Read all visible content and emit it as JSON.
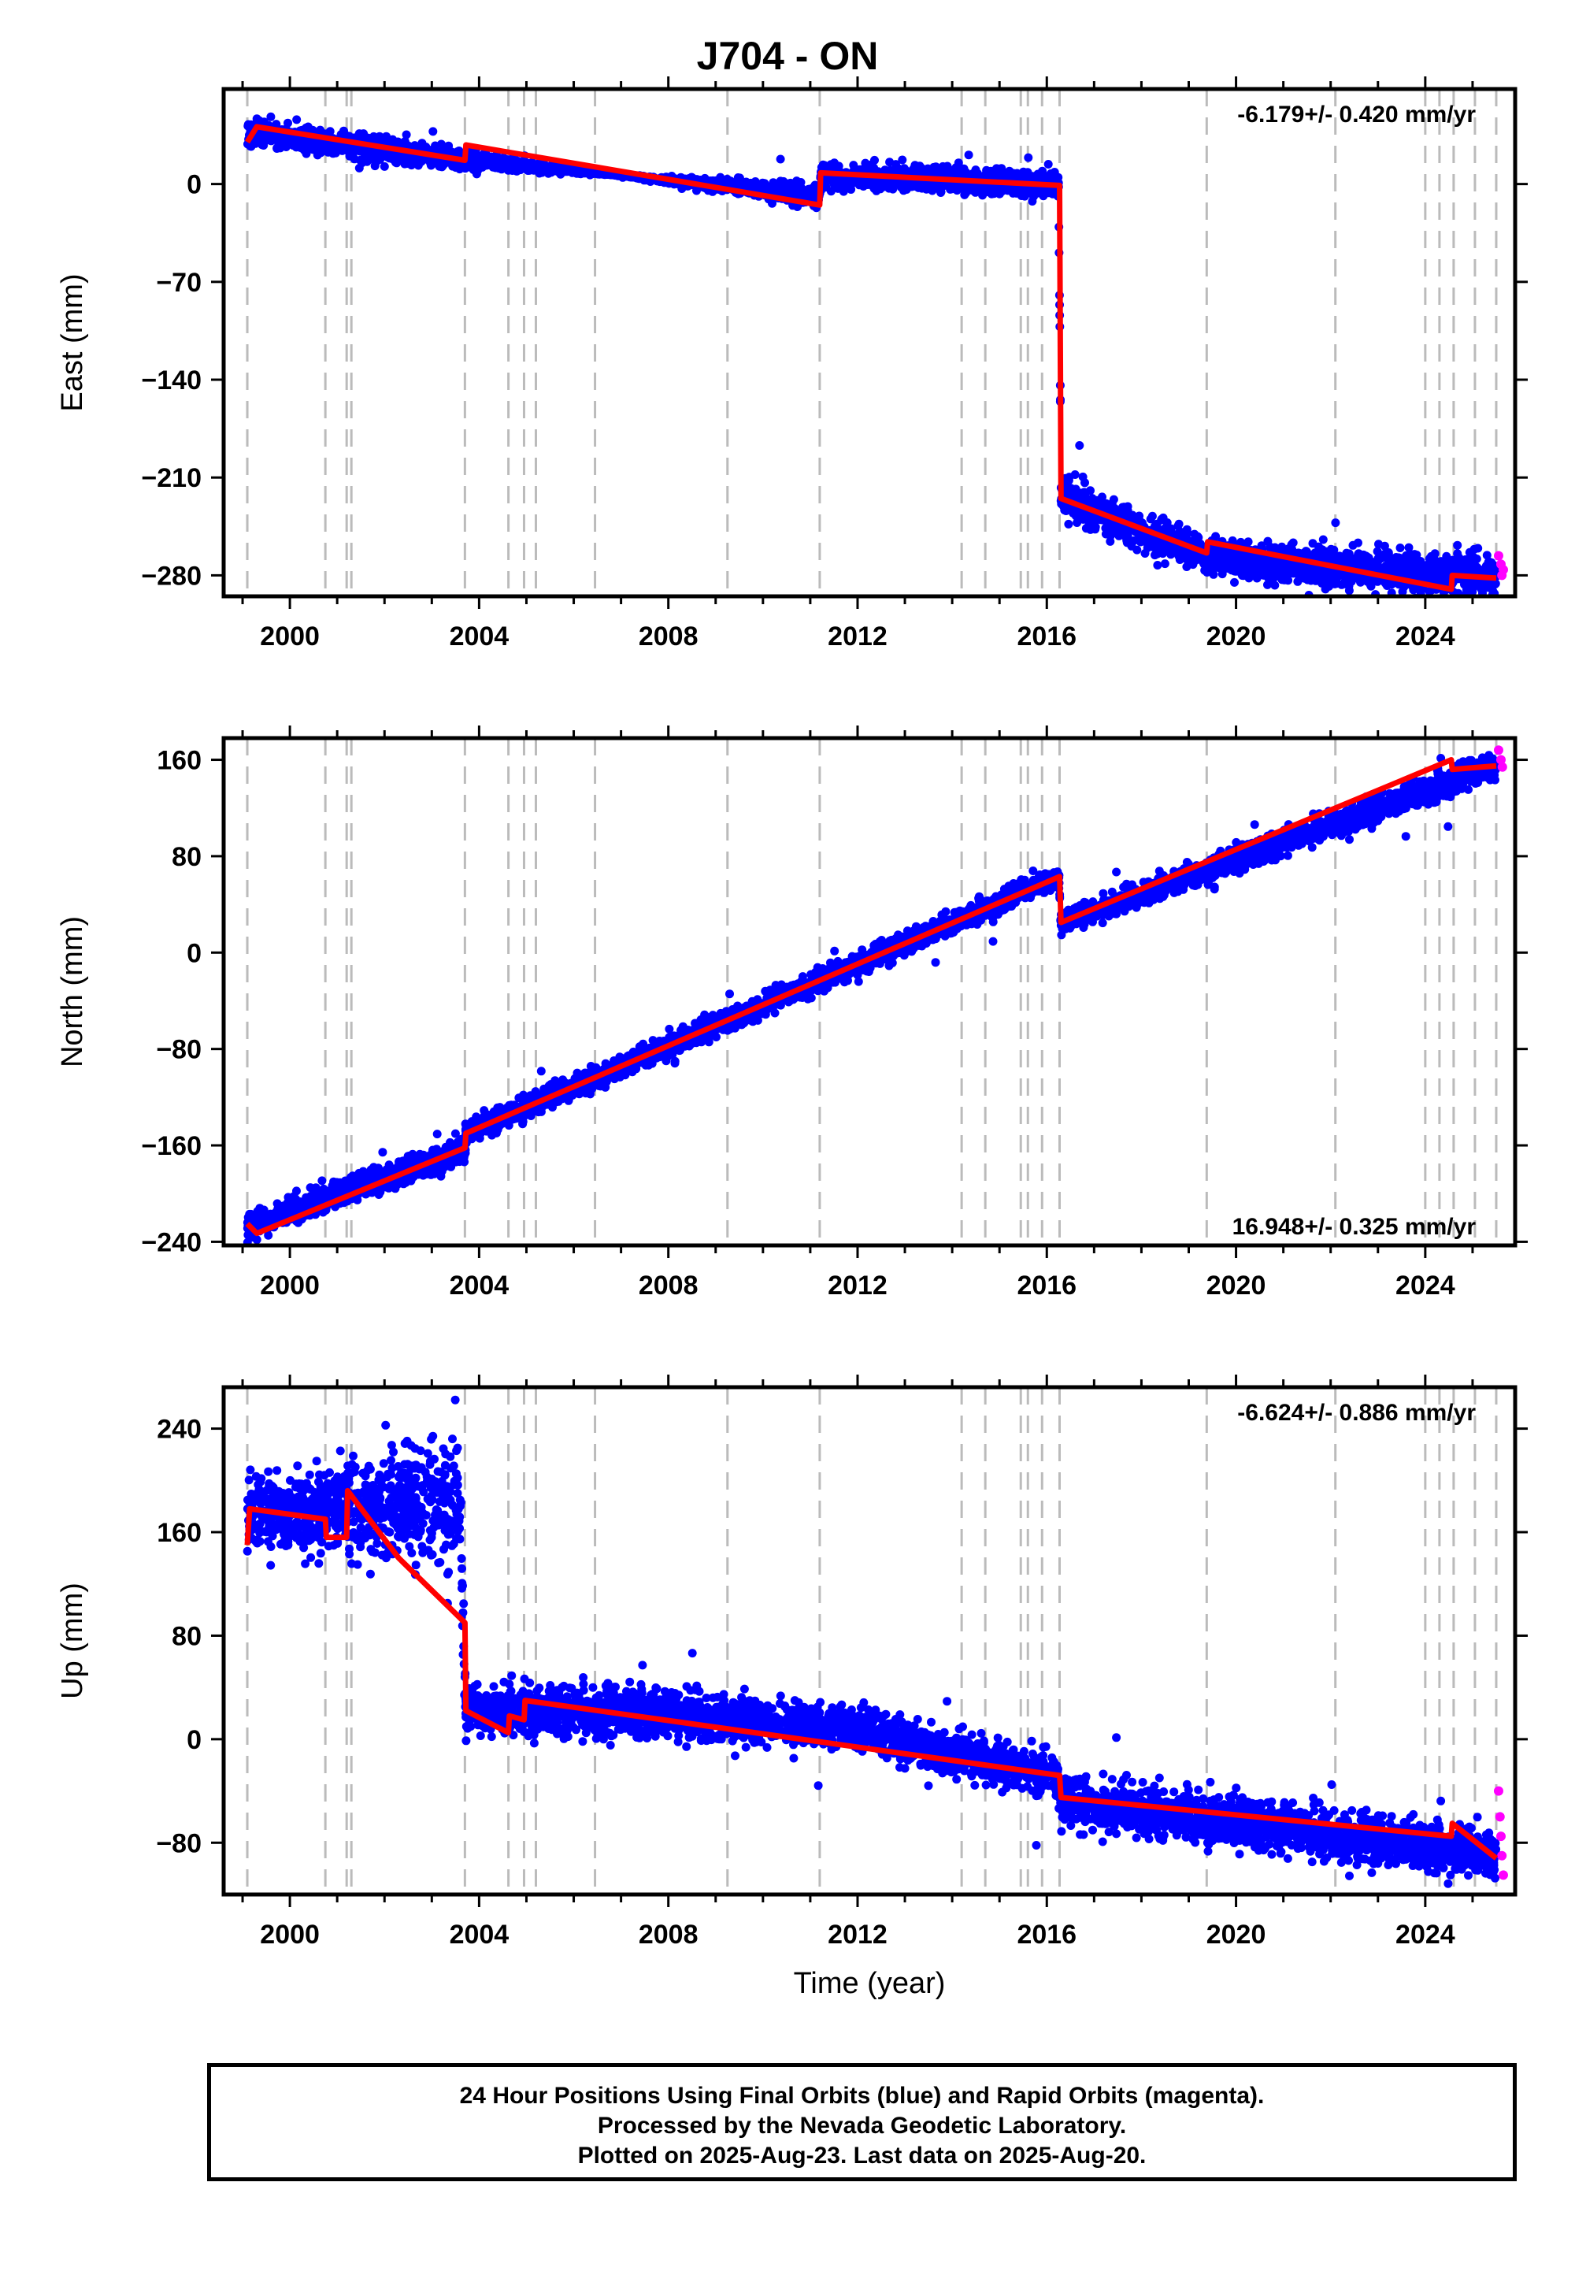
{
  "title": "J704 - ON",
  "footer": {
    "line1": "24 Hour Positions Using Final Orbits (blue) and Rapid Orbits (magenta).",
    "line2": "Processed by the Nevada Geodetic Laboratory.",
    "line3": "Plotted on 2025-Aug-23. Last data on 2025-Aug-20."
  },
  "colors": {
    "final": "#0000ff",
    "rapid": "#ff00ff",
    "model": "#ff0000",
    "event_lines": "#bbbbbb"
  },
  "chart_data": [
    {
      "type": "scatter",
      "component": "east",
      "ylabel": "East (mm)",
      "xlabel": "",
      "rate_text": "-6.179+/- 0.420 mm/yr",
      "rate_position": "top-right",
      "xlim": [
        1998.6,
        2025.9
      ],
      "ylim": [
        -295,
        68
      ],
      "x_ticks": [
        2000,
        2004,
        2008,
        2012,
        2016,
        2020,
        2024
      ],
      "y_ticks": [
        0,
        -70,
        -140,
        -210,
        -280
      ],
      "event_lines": [
        1999.1,
        2000.75,
        2001.2,
        2001.3,
        2003.7,
        2004.62,
        2004.95,
        2005.2,
        2006.45,
        2009.25,
        2011.2,
        2014.2,
        2014.7,
        2015.45,
        2015.6,
        2015.9,
        2016.27,
        2019.38,
        2022.1,
        2024.0,
        2024.3,
        2024.6,
        2025.05,
        2025.5
      ],
      "model": [
        [
          1999.1,
          30
        ],
        [
          1999.3,
          41
        ],
        [
          2003.7,
          17
        ],
        [
          2003.72,
          28
        ],
        [
          2011.2,
          -15
        ],
        [
          2011.22,
          8
        ],
        [
          2016.27,
          -1
        ],
        [
          2016.3,
          -225
        ],
        [
          2019.38,
          -264
        ],
        [
          2019.4,
          -256
        ],
        [
          2024.55,
          -290
        ],
        [
          2024.57,
          -280
        ],
        [
          2025.5,
          -282
        ]
      ],
      "scatter_bands": [
        [
          1999.1,
          48,
          26
        ],
        [
          2003.7,
          24,
          10
        ],
        [
          2011.2,
          -18,
          2
        ],
        [
          2011.22,
          16,
          -4
        ],
        [
          2016.25,
          10,
          -10
        ],
        [
          2016.3,
          -205,
          -240
        ],
        [
          2019.38,
          -255,
          -280
        ],
        [
          2025.5,
          -263,
          -300
        ]
      ],
      "rapid_points": [
        [
          2025.55,
          -266
        ],
        [
          2025.6,
          -272
        ],
        [
          2025.65,
          -276
        ],
        [
          2025.62,
          -280
        ]
      ]
    },
    {
      "type": "scatter",
      "component": "north",
      "ylabel": "North (mm)",
      "xlabel": "",
      "rate_text": "16.948+/- 0.325 mm/yr",
      "rate_position": "bottom-right",
      "xlim": [
        1998.6,
        2025.9
      ],
      "ylim": [
        -243,
        178
      ],
      "x_ticks": [
        2000,
        2004,
        2008,
        2012,
        2016,
        2020,
        2024
      ],
      "y_ticks": [
        160,
        80,
        0,
        -80,
        -160,
        -240
      ],
      "event_lines": [
        1999.1,
        2000.75,
        2001.2,
        2001.3,
        2003.7,
        2004.62,
        2004.95,
        2005.2,
        2006.45,
        2009.25,
        2011.2,
        2014.2,
        2014.7,
        2015.45,
        2015.6,
        2015.9,
        2016.27,
        2019.38,
        2022.1,
        2024.0,
        2024.3,
        2024.6,
        2025.05,
        2025.5
      ],
      "model": [
        [
          1999.1,
          -225
        ],
        [
          1999.3,
          -233
        ],
        [
          2003.7,
          -162
        ],
        [
          2003.72,
          -150
        ],
        [
          2016.27,
          63
        ],
        [
          2016.3,
          25
        ],
        [
          2024.55,
          160
        ],
        [
          2024.57,
          152
        ],
        [
          2025.5,
          155
        ]
      ],
      "scatter_bands": [
        [
          1999.1,
          -215,
          -240
        ],
        [
          2003.7,
          -152,
          -175
        ],
        [
          2003.72,
          -140,
          -160
        ],
        [
          2016.25,
          73,
          52
        ],
        [
          2016.3,
          35,
          15
        ],
        [
          2025.5,
          168,
          142
        ]
      ],
      "rapid_points": [
        [
          2025.55,
          168
        ],
        [
          2025.6,
          160
        ],
        [
          2025.63,
          154
        ]
      ]
    },
    {
      "type": "scatter",
      "component": "up",
      "ylabel": "Up (mm)",
      "xlabel": "Time (year)",
      "rate_text": "-6.624+/- 0.886 mm/yr",
      "rate_position": "top-right",
      "xlim": [
        1998.6,
        2025.9
      ],
      "ylim": [
        -120,
        272
      ],
      "x_ticks": [
        2000,
        2004,
        2008,
        2012,
        2016,
        2020,
        2024
      ],
      "y_ticks": [
        240,
        160,
        80,
        0,
        -80
      ],
      "event_lines": [
        1999.1,
        2000.75,
        2001.2,
        2001.3,
        2003.7,
        2004.62,
        2004.95,
        2005.2,
        2006.45,
        2009.25,
        2011.2,
        2014.2,
        2014.7,
        2015.45,
        2015.6,
        2015.9,
        2016.27,
        2019.38,
        2022.1,
        2024.0,
        2024.3,
        2024.6,
        2025.05,
        2025.5
      ],
      "model": [
        [
          1999.1,
          150
        ],
        [
          1999.15,
          178
        ],
        [
          2000.75,
          170
        ],
        [
          2000.77,
          156
        ],
        [
          2001.2,
          156
        ],
        [
          2001.22,
          192
        ],
        [
          2002.3,
          140
        ],
        [
          2003.7,
          90
        ],
        [
          2003.72,
          22
        ],
        [
          2004.62,
          5
        ],
        [
          2004.64,
          18
        ],
        [
          2004.95,
          15
        ],
        [
          2004.97,
          30
        ],
        [
          2016.27,
          -28
        ],
        [
          2016.3,
          -45
        ],
        [
          2024.55,
          -75
        ],
        [
          2024.57,
          -65
        ],
        [
          2025.5,
          -92
        ]
      ],
      "scatter_bands": [
        [
          1999.1,
          200,
          140
        ],
        [
          2001.2,
          220,
          140
        ],
        [
          2003.6,
          240,
          120
        ],
        [
          2003.72,
          45,
          0
        ],
        [
          2008,
          40,
          0
        ],
        [
          2012,
          25,
          -10
        ],
        [
          2016.25,
          -10,
          -50
        ],
        [
          2016.3,
          -25,
          -70
        ],
        [
          2025.5,
          -70,
          -110
        ]
      ],
      "rapid_points": [
        [
          2025.55,
          -40
        ],
        [
          2025.58,
          -60
        ],
        [
          2025.6,
          -75
        ],
        [
          2025.62,
          -90
        ],
        [
          2025.65,
          -105
        ]
      ]
    }
  ]
}
